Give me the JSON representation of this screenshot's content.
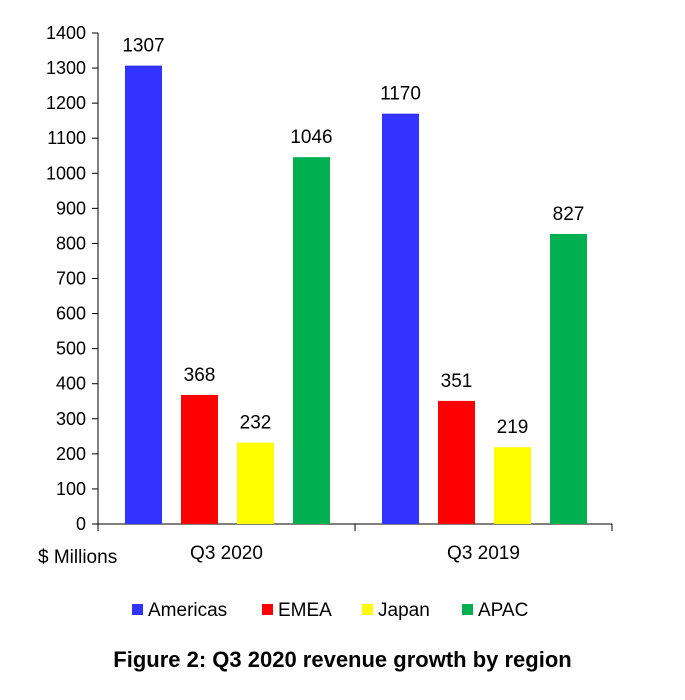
{
  "caption": "Figure 2: Q3 2020 revenue growth by region",
  "chart_data": {
    "type": "bar",
    "categories": [
      "Q3 2020",
      "Q3 2019"
    ],
    "series": [
      {
        "name": "Americas",
        "values": [
          1307,
          1170
        ],
        "color": "#3333ff"
      },
      {
        "name": "EMEA",
        "values": [
          368,
          351
        ],
        "color": "#ff0000"
      },
      {
        "name": "Japan",
        "values": [
          232,
          219
        ],
        "color": "#ffff00"
      },
      {
        "name": "APAC",
        "values": [
          1046,
          827
        ],
        "color": "#00b050"
      }
    ],
    "ylim": [
      0,
      1400
    ],
    "yticks": [
      0,
      100,
      200,
      300,
      400,
      500,
      600,
      700,
      800,
      900,
      1000,
      1100,
      1200,
      1300,
      1400
    ],
    "unit_label": "$ Millions",
    "grid": false,
    "legend_position": "bottom",
    "data_labels": true
  }
}
